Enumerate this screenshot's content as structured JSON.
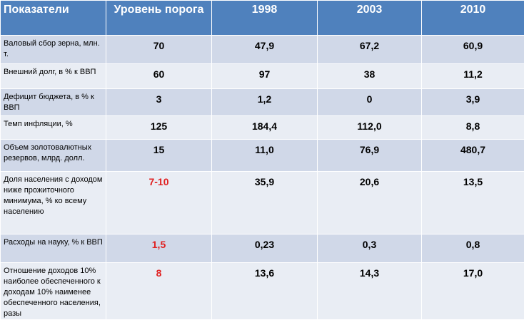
{
  "table": {
    "header": [
      "Показатели",
      "Уровень порога",
      "1998",
      "2003",
      "2010"
    ],
    "rows": [
      [
        "Валовый сбор зерна, млн. т.",
        "70",
        "47,9",
        "67,2",
        "60,9"
      ],
      [
        "Внешний долг, в % к ВВП",
        "60",
        "97",
        "38",
        "11,2"
      ],
      [
        "Дефицит бюджета, в % к ВВП",
        "3",
        "1,2",
        "0",
        "3,9"
      ],
      [
        "Темп инфляции, %",
        "125",
        "184,4",
        "112,0",
        "8,8"
      ],
      [
        "Объем золотовалютных резервов, млрд. долл.",
        "15",
        "11,0",
        "76,9",
        "480,7"
      ],
      [
        "Доля населения с доходом ниже прожиточного минимума, % ко всему населению",
        "7-10",
        "35,9",
        "20,6",
        "13,5"
      ],
      [
        "Расходы на науку, % к ВВП",
        "1,5",
        "0,23",
        "0,3",
        "0,8"
      ],
      [
        "Отношение доходов 10% наиболее обеспеченного к доходам 10% наименее обеспеченного населения, разы",
        "8",
        "13,6",
        "14,3",
        "17,0"
      ]
    ]
  }
}
